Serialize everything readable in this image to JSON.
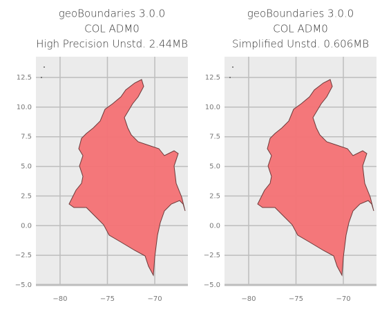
{
  "chart_data": [
    {
      "type": "map",
      "title": [
        "geoBoundaries 3.0.0",
        "COL ADM0",
        "High Precision Unstd. 2.44MB"
      ],
      "xlim": [
        -82.55,
        -66.5
      ],
      "ylim": [
        -5,
        14.25
      ],
      "xticks": [
        {
          "value": -80,
          "label": "−80"
        },
        {
          "value": -75,
          "label": "−75"
        },
        {
          "value": -70,
          "label": "−70"
        }
      ],
      "yticks": [
        {
          "value": -5,
          "label": "−5.0"
        },
        {
          "value": -2.5,
          "label": "−2.5"
        },
        {
          "value": 0,
          "label": "0.0"
        },
        2.5,
        {
          "value": 5,
          "label": "5.0"
        },
        7.5,
        {
          "value": 10,
          "label": "10.0"
        },
        12.5
      ],
      "color": "#f47174",
      "grid": true
    },
    {
      "type": "map",
      "title": [
        "geoBoundaries 3.0.0",
        "COL ADM0",
        "Simplified Unstd. 0.606MB"
      ],
      "xlim": [
        -82.55,
        -66.5
      ],
      "ylim": [
        -5,
        14.25
      ],
      "xticks": [
        {
          "value": -80,
          "label": "−80"
        },
        {
          "value": -75,
          "label": "−75"
        },
        {
          "value": -70,
          "label": "−70"
        }
      ],
      "yticks": [
        {
          "value": -5,
          "label": "−5.0"
        },
        {
          "value": -2.5,
          "label": "−2.5"
        },
        {
          "value": 0,
          "label": "0.0"
        },
        2.5,
        {
          "value": 5,
          "label": "5.0"
        },
        7.5,
        {
          "value": 10,
          "label": "10.0"
        },
        12.5
      ],
      "color": "#f47174",
      "grid": true
    }
  ]
}
